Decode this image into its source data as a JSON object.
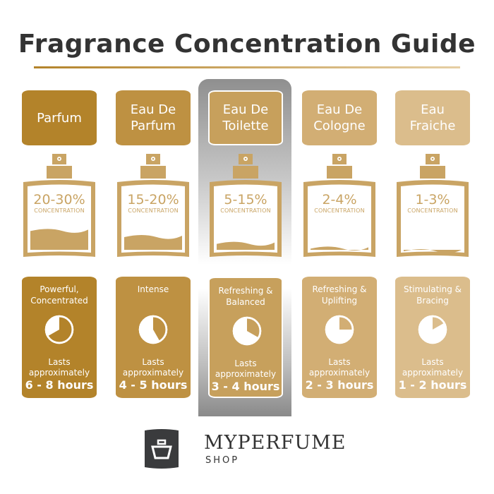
{
  "title": "Fragrance Concentration Guide",
  "concentration_label": "CONCENTRATION",
  "lasts_label_1": "Lasts",
  "lasts_label_2": "approximately",
  "highlighted": 2,
  "bottle_color": "#c9a464",
  "types": [
    {
      "name": "Parfum",
      "concentration": "20-30%",
      "description": "Powerful, Concentrated",
      "duration": "6 - 8 hours",
      "color": "#b3832a",
      "fill_level": 0.34,
      "pie_fraction": 0.667
    },
    {
      "name": "Eau De Parfum",
      "concentration": "15-20%",
      "description": "Intense",
      "duration": "4 - 5 hours",
      "color": "#be9142",
      "fill_level": 0.25,
      "pie_fraction": 0.417
    },
    {
      "name": "Eau De Toilette",
      "concentration": "5-15%",
      "description": "Refreshing & Balanced",
      "duration": "3 - 4 hours",
      "color": "#c7a05c",
      "fill_level": 0.15,
      "pie_fraction": 0.333
    },
    {
      "name": "Eau De Cologne",
      "concentration": "2-4%",
      "description": "Refreshing & Uplifting",
      "duration": "2 - 3 hours",
      "color": "#d2ae74",
      "fill_level": 0.08,
      "pie_fraction": 0.25
    },
    {
      "name": "Eau Fraiche",
      "concentration": "1-3%",
      "description": "Stimulating & Bracing",
      "duration": "1 - 2 hours",
      "color": "#dbbd8c",
      "fill_level": 0.04,
      "pie_fraction": 0.167
    }
  ],
  "logo": {
    "brand": "MYPERFUME",
    "sub": "SHOP"
  }
}
